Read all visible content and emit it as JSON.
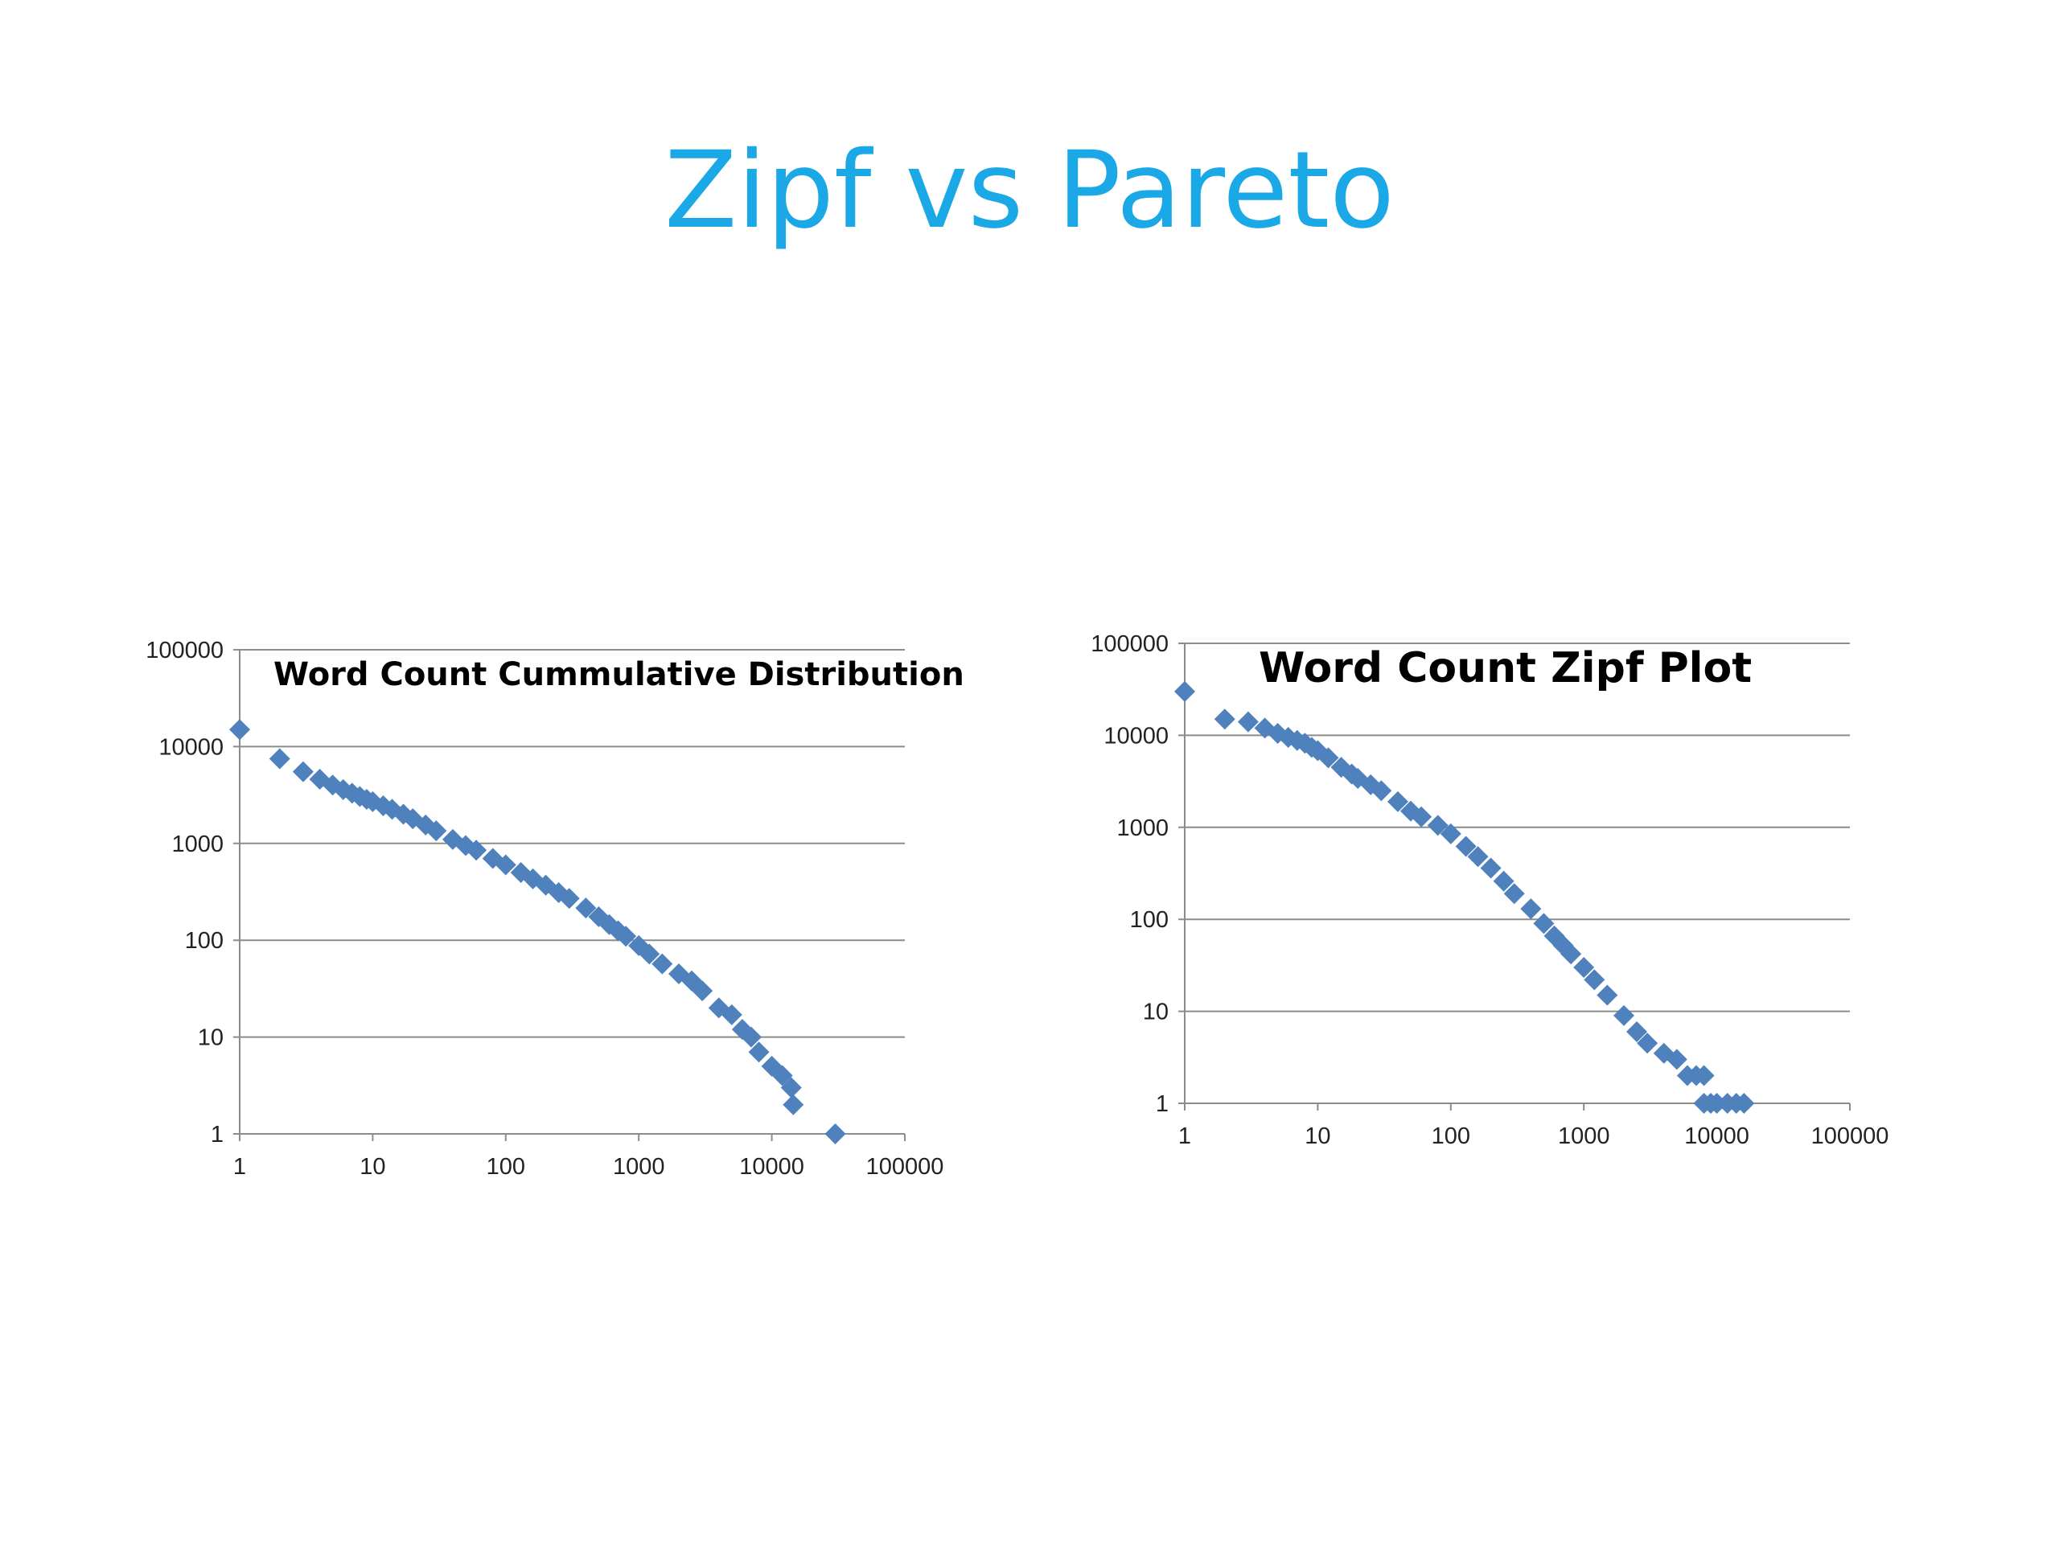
{
  "slide": {
    "title": "Zipf vs Pareto"
  },
  "chart_data": [
    {
      "type": "scatter",
      "title": "Word Count Cummulative Distribution",
      "xscale": "log",
      "yscale": "log",
      "xlim": [
        1,
        100000
      ],
      "ylim": [
        1,
        100000
      ],
      "xticks": [
        "1",
        "10",
        "100",
        "1000",
        "10000",
        "100000"
      ],
      "yticks": [
        "1",
        "10",
        "100",
        "1000",
        "10000",
        "100000"
      ],
      "grid": "horizontal",
      "marker": "diamond",
      "color": "#4f81bd",
      "points": [
        [
          1,
          15000
        ],
        [
          2,
          7500
        ],
        [
          3,
          5500
        ],
        [
          4,
          4600
        ],
        [
          5,
          4000
        ],
        [
          6,
          3600
        ],
        [
          7,
          3300
        ],
        [
          8,
          3050
        ],
        [
          9,
          2850
        ],
        [
          10,
          2700
        ],
        [
          12,
          2450
        ],
        [
          14,
          2250
        ],
        [
          17,
          2000
        ],
        [
          20,
          1800
        ],
        [
          25,
          1550
        ],
        [
          30,
          1350
        ],
        [
          40,
          1100
        ],
        [
          50,
          950
        ],
        [
          60,
          850
        ],
        [
          80,
          700
        ],
        [
          100,
          600
        ],
        [
          130,
          500
        ],
        [
          160,
          430
        ],
        [
          200,
          370
        ],
        [
          250,
          310
        ],
        [
          300,
          270
        ],
        [
          400,
          215
        ],
        [
          500,
          175
        ],
        [
          600,
          145
        ],
        [
          700,
          125
        ],
        [
          800,
          110
        ],
        [
          1000,
          88
        ],
        [
          1200,
          72
        ],
        [
          1500,
          57
        ],
        [
          2000,
          45
        ],
        [
          2500,
          38
        ],
        [
          3000,
          30
        ],
        [
          4000,
          20
        ],
        [
          5000,
          17
        ],
        [
          6000,
          12
        ],
        [
          7000,
          10
        ],
        [
          8000,
          7
        ],
        [
          10000,
          5
        ],
        [
          12000,
          4
        ],
        [
          14000,
          3
        ],
        [
          14500,
          2
        ],
        [
          30000,
          1
        ]
      ]
    },
    {
      "type": "scatter",
      "title": "Word Count Zipf Plot",
      "xscale": "log",
      "yscale": "log",
      "xlim": [
        1,
        100000
      ],
      "ylim": [
        1,
        100000
      ],
      "xticks": [
        "1",
        "10",
        "100",
        "1000",
        "10000",
        "100000"
      ],
      "yticks": [
        "1",
        "10",
        "100",
        "1000",
        "10000",
        "100000"
      ],
      "grid": "horizontal",
      "marker": "diamond",
      "color": "#4f81bd",
      "points": [
        [
          1,
          30000
        ],
        [
          2,
          15000
        ],
        [
          3,
          14000
        ],
        [
          4,
          12000
        ],
        [
          5,
          10500
        ],
        [
          6,
          9500
        ],
        [
          7,
          8800
        ],
        [
          8,
          8200
        ],
        [
          9,
          7400
        ],
        [
          10,
          6800
        ],
        [
          12,
          5700
        ],
        [
          15,
          4500
        ],
        [
          18,
          3800
        ],
        [
          20,
          3400
        ],
        [
          25,
          2900
        ],
        [
          30,
          2500
        ],
        [
          40,
          1900
        ],
        [
          50,
          1500
        ],
        [
          60,
          1300
        ],
        [
          80,
          1050
        ],
        [
          100,
          850
        ],
        [
          130,
          620
        ],
        [
          160,
          480
        ],
        [
          200,
          360
        ],
        [
          250,
          260
        ],
        [
          300,
          190
        ],
        [
          400,
          130
        ],
        [
          500,
          90
        ],
        [
          600,
          66
        ],
        [
          700,
          52
        ],
        [
          800,
          42
        ],
        [
          1000,
          30
        ],
        [
          1200,
          22
        ],
        [
          1500,
          15
        ],
        [
          2000,
          9
        ],
        [
          2500,
          6
        ],
        [
          3000,
          4.5
        ],
        [
          4000,
          3.5
        ],
        [
          5000,
          3
        ],
        [
          6000,
          2
        ],
        [
          7000,
          2
        ],
        [
          8000,
          2
        ],
        [
          8000,
          1
        ],
        [
          9000,
          1
        ],
        [
          10000,
          1
        ],
        [
          12000,
          1
        ],
        [
          14000,
          1
        ],
        [
          16000,
          1
        ]
      ]
    }
  ]
}
